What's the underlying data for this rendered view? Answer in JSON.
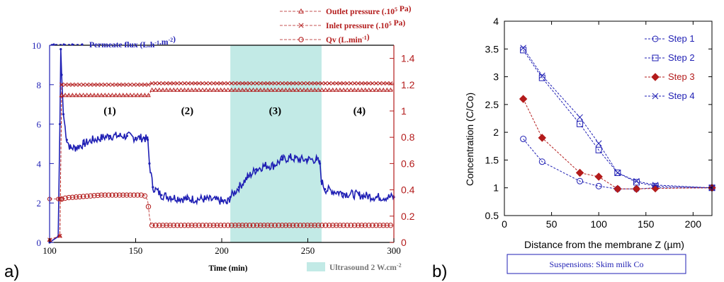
{
  "chart_data": [
    {
      "type": "line",
      "panel_label": "a)",
      "xlabel": "Time  (min)",
      "xlim": [
        100,
        300
      ],
      "xticks": [
        "100",
        "150",
        "200",
        "250",
        "300"
      ],
      "yleft": {
        "ylim": [
          0,
          10
        ],
        "ticks": [
          "0",
          "2",
          "4",
          "6",
          "8",
          "10"
        ],
        "color": "#1f1fb4"
      },
      "yright": {
        "ylim": [
          0,
          1.5
        ],
        "ticks": [
          "0",
          "0.2",
          "0.4",
          "0.6",
          "0.8",
          "1",
          "1.2",
          "1.4"
        ],
        "color": "#b31b1b"
      },
      "shaded_region": {
        "x": [
          205,
          258
        ],
        "label": "Ultrasound 2 W.cm",
        "label_sup": "-2",
        "color": "#c2eae6"
      },
      "annotations": [
        {
          "text": "(1)",
          "x": 135,
          "y": 6.5
        },
        {
          "text": "(2)",
          "x": 180,
          "y": 6.5
        },
        {
          "text": "(3)",
          "x": 231,
          "y": 6.5
        },
        {
          "text": "(4)",
          "x": 280,
          "y": 6.5
        }
      ],
      "legend": [
        {
          "id": "outlet",
          "parts": [
            {
              "t": "Outlet pressure (.10"
            },
            {
              "t": "5",
              "sup": true
            },
            {
              "t": " Pa)"
            }
          ],
          "marker": "triangle",
          "color": "#b31b1b"
        },
        {
          "id": "inlet",
          "parts": [
            {
              "t": "Inlet pressure (.10"
            },
            {
              "t": "5",
              "sup": true
            },
            {
              "t": " Pa)"
            }
          ],
          "marker": "x",
          "color": "#b31b1b"
        },
        {
          "id": "qv",
          "parts": [
            {
              "t": "Qv (L.min"
            },
            {
              "t": "-1",
              "sup": true
            },
            {
              "t": ")"
            }
          ],
          "marker": "circle",
          "color": "#b31b1b"
        },
        {
          "id": "flux",
          "parts": [
            {
              "t": "Permeate flux (L.h"
            },
            {
              "t": "-1",
              "sup": true
            },
            {
              "t": ".m"
            },
            {
              "t": "-2",
              "sup": true
            },
            {
              "t": ")"
            }
          ],
          "marker": "dot",
          "color": "#1f1fb4"
        }
      ],
      "series": [
        {
          "name": "Permeate flux (L.h-1.m-2)",
          "axis": "left",
          "color": "#1f1fb4",
          "marker": "dot",
          "x": [
            100,
            105,
            106,
            106.5,
            107,
            108,
            110,
            112,
            115,
            120,
            125,
            130,
            135,
            140,
            145,
            150,
            155,
            157,
            158,
            160,
            165,
            170,
            180,
            190,
            200,
            203,
            205,
            210,
            215,
            220,
            225,
            230,
            235,
            240,
            245,
            250,
            255,
            257,
            258,
            260,
            270,
            280,
            290,
            300
          ],
          "y": [
            0,
            0.3,
            6,
            9.8,
            8.5,
            6.5,
            5.2,
            4.8,
            4.8,
            5.0,
            5.2,
            5.3,
            5.4,
            5.4,
            5.4,
            5.3,
            5.3,
            5.2,
            4.0,
            2.8,
            2.4,
            2.3,
            2.2,
            2.2,
            2.1,
            2.0,
            2.3,
            2.8,
            3.3,
            3.7,
            3.9,
            3.9,
            4.2,
            4.3,
            4.2,
            4.2,
            4.2,
            4.0,
            3.1,
            2.7,
            2.5,
            2.4,
            2.3,
            2.3
          ]
        },
        {
          "name": "Outlet pressure (.10^5 Pa)",
          "axis": "right",
          "color": "#b31b1b",
          "marker": "triangle",
          "x": [
            100,
            106,
            107,
            158,
            159,
            300
          ],
          "y": [
            0.02,
            0.05,
            1.12,
            1.12,
            1.16,
            1.16
          ]
        },
        {
          "name": "Inlet pressure (.10^5 Pa)",
          "axis": "right",
          "color": "#b31b1b",
          "marker": "x",
          "x": [
            100,
            106,
            107,
            158,
            159,
            300
          ],
          "y": [
            0.02,
            0.05,
            1.2,
            1.2,
            1.21,
            1.21
          ]
        },
        {
          "name": "Qv (L.min-1)",
          "axis": "right",
          "color": "#b31b1b",
          "marker": "circle",
          "x": [
            100,
            105,
            106,
            107,
            110,
            120,
            130,
            140,
            150,
            155,
            157,
            158,
            159,
            200,
            250,
            300
          ],
          "y": [
            0.33,
            0.33,
            0.33,
            0.33,
            0.34,
            0.35,
            0.36,
            0.36,
            0.36,
            0.36,
            0.32,
            0.2,
            0.13,
            0.13,
            0.13,
            0.13
          ]
        }
      ]
    },
    {
      "type": "line",
      "panel_label": "b)",
      "xlabel": "Distance from the membrane Z (µm)",
      "ylabel": "Concentration (C/Co)",
      "xlim": [
        0,
        220
      ],
      "ylim": [
        0.5,
        4
      ],
      "xticks": [
        "0",
        "50",
        "100",
        "150",
        "200"
      ],
      "yticks": [
        "0.5",
        "1",
        "1.5",
        "2",
        "2.5",
        "3",
        "3.5",
        "4"
      ],
      "caption": "Suspensions: Skim milk Co",
      "series": [
        {
          "name": "Step 1",
          "color": "#1f1fb4",
          "marker": "circle",
          "x": [
            20,
            40,
            80,
            100,
            120,
            140,
            160,
            220
          ],
          "y": [
            1.88,
            1.47,
            1.12,
            1.03,
            0.98,
            0.98,
            1.0,
            1.0
          ]
        },
        {
          "name": "Step 2",
          "color": "#1f1fb4",
          "marker": "square",
          "x": [
            20,
            40,
            80,
            100,
            120,
            140,
            160,
            220
          ],
          "y": [
            3.48,
            2.98,
            2.15,
            1.68,
            1.27,
            1.1,
            1.03,
            1.0
          ]
        },
        {
          "name": "Step 3",
          "color": "#b31b1b",
          "marker": "diamond",
          "x": [
            20,
            40,
            80,
            100,
            120,
            140,
            160,
            220
          ],
          "y": [
            2.6,
            1.9,
            1.27,
            1.2,
            0.98,
            0.98,
            0.99,
            1.0
          ]
        },
        {
          "name": "Step 4",
          "color": "#1f1fb4",
          "marker": "x",
          "x": [
            20,
            40,
            80,
            100,
            120,
            140,
            160,
            220
          ],
          "y": [
            3.52,
            3.02,
            2.27,
            1.8,
            1.27,
            1.12,
            1.05,
            1.0
          ]
        }
      ]
    }
  ]
}
